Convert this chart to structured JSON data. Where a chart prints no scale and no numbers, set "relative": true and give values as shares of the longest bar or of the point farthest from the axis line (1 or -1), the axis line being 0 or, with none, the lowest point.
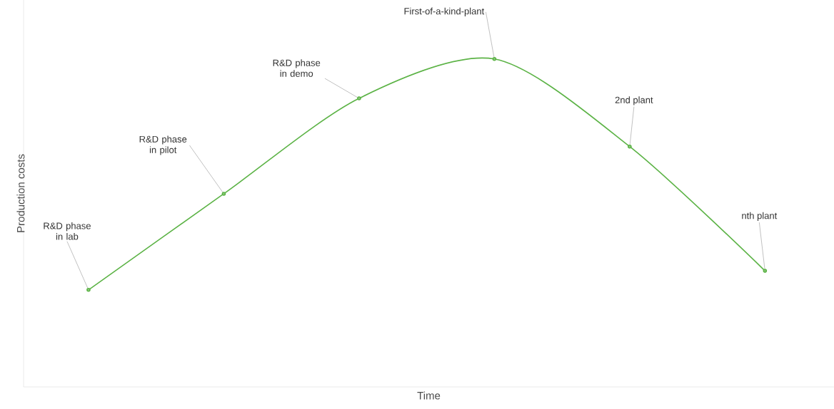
{
  "chart_data": {
    "type": "line",
    "relative": true,
    "xlabel": "Time",
    "ylabel": "Production costs",
    "categories": [
      null,
      null,
      null,
      null,
      null,
      null
    ],
    "series": [
      {
        "color": "#5cb346",
        "values": [
          0.296,
          0.589,
          0.88,
          1.0,
          0.733,
          0.354
        ]
      }
    ],
    "marker": "circle",
    "line_style": "solid",
    "annotations": [
      "R&D phase in lab",
      "R&D phase in pilot",
      "R&D phase in demo",
      "First-of-a-kind-plant",
      "2nd plant",
      "nth plant"
    ]
  }
}
